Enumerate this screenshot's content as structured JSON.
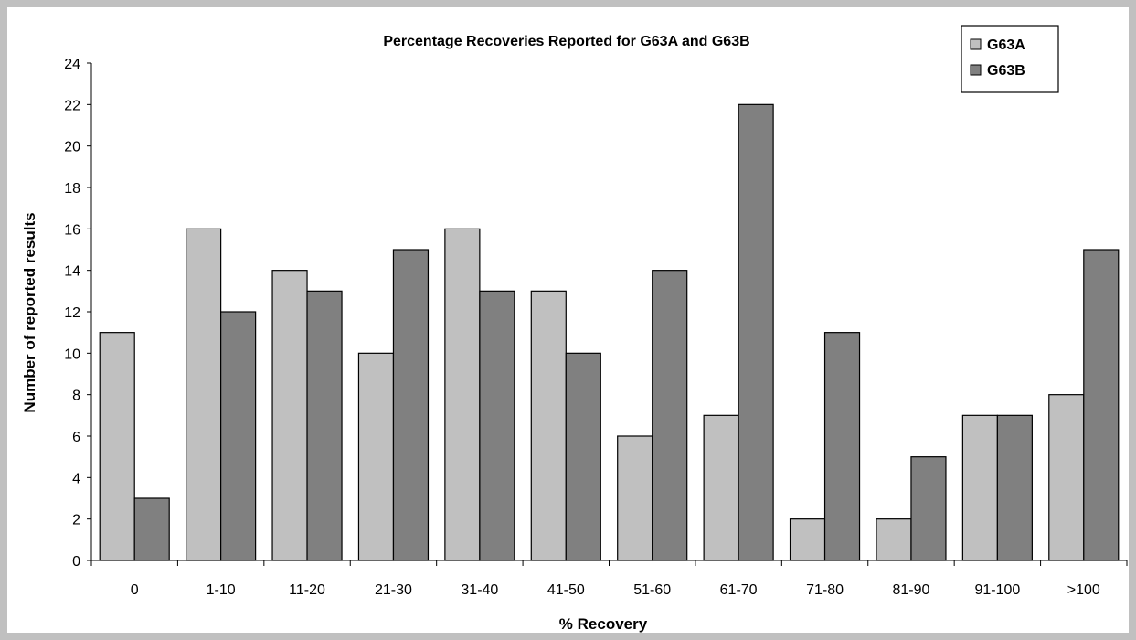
{
  "chart_data": {
    "type": "bar",
    "title": "Percentage Recoveries Reported for G63A and G63B",
    "xlabel": "% Recovery",
    "ylabel": "Number of reported results",
    "categories": [
      "0",
      "1-10",
      "11-20",
      "21-30",
      "31-40",
      "41-50",
      "51-60",
      "61-70",
      "71-80",
      "81-90",
      "91-100",
      ">100"
    ],
    "series": [
      {
        "name": "G63A",
        "color": "#c0c0c0",
        "values": [
          11,
          16,
          14,
          10,
          16,
          13,
          6,
          7,
          2,
          2,
          7,
          8
        ]
      },
      {
        "name": "G63B",
        "color": "#808080",
        "values": [
          3,
          12,
          13,
          15,
          13,
          10,
          14,
          22,
          11,
          5,
          7,
          15
        ]
      }
    ],
    "ylim": [
      0,
      24
    ],
    "yticks": [
      0,
      2,
      4,
      6,
      8,
      10,
      12,
      14,
      16,
      18,
      20,
      22,
      24
    ],
    "grid": false,
    "legend_position": "top-right"
  }
}
